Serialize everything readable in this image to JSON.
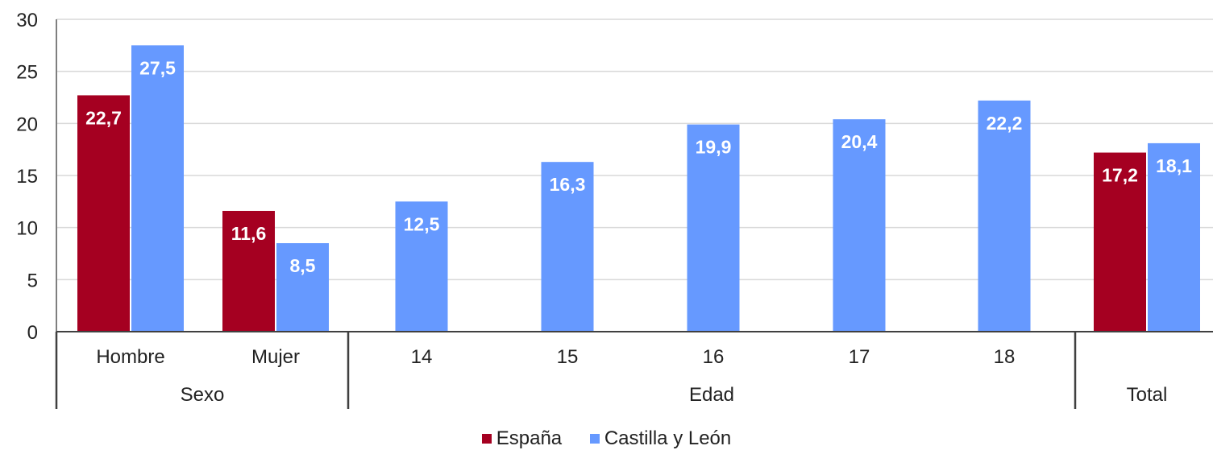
{
  "chart_data": {
    "type": "bar",
    "title": "",
    "ylim": [
      0,
      30
    ],
    "yticks": [
      0,
      5,
      10,
      15,
      20,
      25,
      30
    ],
    "grid": true,
    "legend_position": "bottom-center",
    "series": [
      {
        "name": "España",
        "color": "#A50021"
      },
      {
        "name": "Castilla y León",
        "color": "#6699FF"
      }
    ],
    "categories": [
      {
        "label": "Hombre",
        "group": "Sexo",
        "values": [
          22.7,
          27.5
        ],
        "labels": [
          "22,7",
          "27,5"
        ]
      },
      {
        "label": "Mujer",
        "group": "Sexo",
        "values": [
          11.6,
          8.5
        ],
        "labels": [
          "11,6",
          "8,5"
        ]
      },
      {
        "label": "14",
        "group": "Edad",
        "values": [
          null,
          12.5
        ],
        "labels": [
          "",
          "12,5"
        ]
      },
      {
        "label": "15",
        "group": "Edad",
        "values": [
          null,
          16.3
        ],
        "labels": [
          "",
          "16,3"
        ]
      },
      {
        "label": "16",
        "group": "Edad",
        "values": [
          null,
          19.9
        ],
        "labels": [
          "",
          "19,9"
        ]
      },
      {
        "label": "17",
        "group": "Edad",
        "values": [
          null,
          20.4
        ],
        "labels": [
          "",
          "20,4"
        ]
      },
      {
        "label": "18",
        "group": "Edad",
        "values": [
          null,
          22.2
        ],
        "labels": [
          "",
          "22,2"
        ]
      },
      {
        "label": "",
        "group": "Total",
        "values": [
          17.2,
          18.1
        ],
        "labels": [
          "17,2",
          "18,1"
        ]
      }
    ],
    "groups": [
      {
        "name": "Sexo"
      },
      {
        "name": "Edad"
      },
      {
        "name": "Total"
      }
    ]
  }
}
